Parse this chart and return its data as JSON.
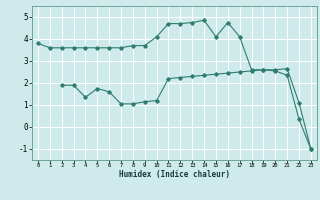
{
  "xlabel": "Humidex (Indice chaleur)",
  "bg_color": "#ceeaea",
  "grid_color": "#ffffff",
  "line_color": "#2e7d6e",
  "x_ticks": [
    0,
    1,
    2,
    3,
    4,
    5,
    6,
    7,
    8,
    9,
    10,
    11,
    12,
    13,
    14,
    15,
    16,
    17,
    18,
    19,
    20,
    21,
    22,
    23
  ],
  "xlim": [
    -0.5,
    23.5
  ],
  "ylim": [
    -1.5,
    5.5
  ],
  "y_ticks": [
    -1,
    0,
    1,
    2,
    3,
    4,
    5
  ],
  "line1_x": [
    0,
    1,
    2,
    3,
    4,
    5,
    6,
    7,
    8,
    9,
    10,
    11,
    12,
    13,
    14,
    15,
    16,
    17,
    18,
    19,
    20,
    21,
    22,
    23
  ],
  "line1_y": [
    3.8,
    3.6,
    3.6,
    3.6,
    3.6,
    3.6,
    3.6,
    3.6,
    3.7,
    3.7,
    4.1,
    4.7,
    4.7,
    4.75,
    4.85,
    4.1,
    4.75,
    4.1,
    2.6,
    2.6,
    2.55,
    2.35,
    0.35,
    -1.0
  ],
  "line2_x": [
    2,
    3,
    4,
    5,
    6,
    7,
    8,
    9,
    10,
    11,
    12,
    13,
    14,
    15,
    16,
    17,
    18,
    19,
    20,
    21,
    22,
    23
  ],
  "line2_y": [
    1.9,
    1.9,
    1.35,
    1.75,
    1.6,
    1.05,
    1.05,
    1.15,
    1.2,
    2.2,
    2.25,
    2.3,
    2.35,
    2.4,
    2.45,
    2.5,
    2.55,
    2.6,
    2.6,
    2.65,
    1.1,
    -1.0
  ]
}
